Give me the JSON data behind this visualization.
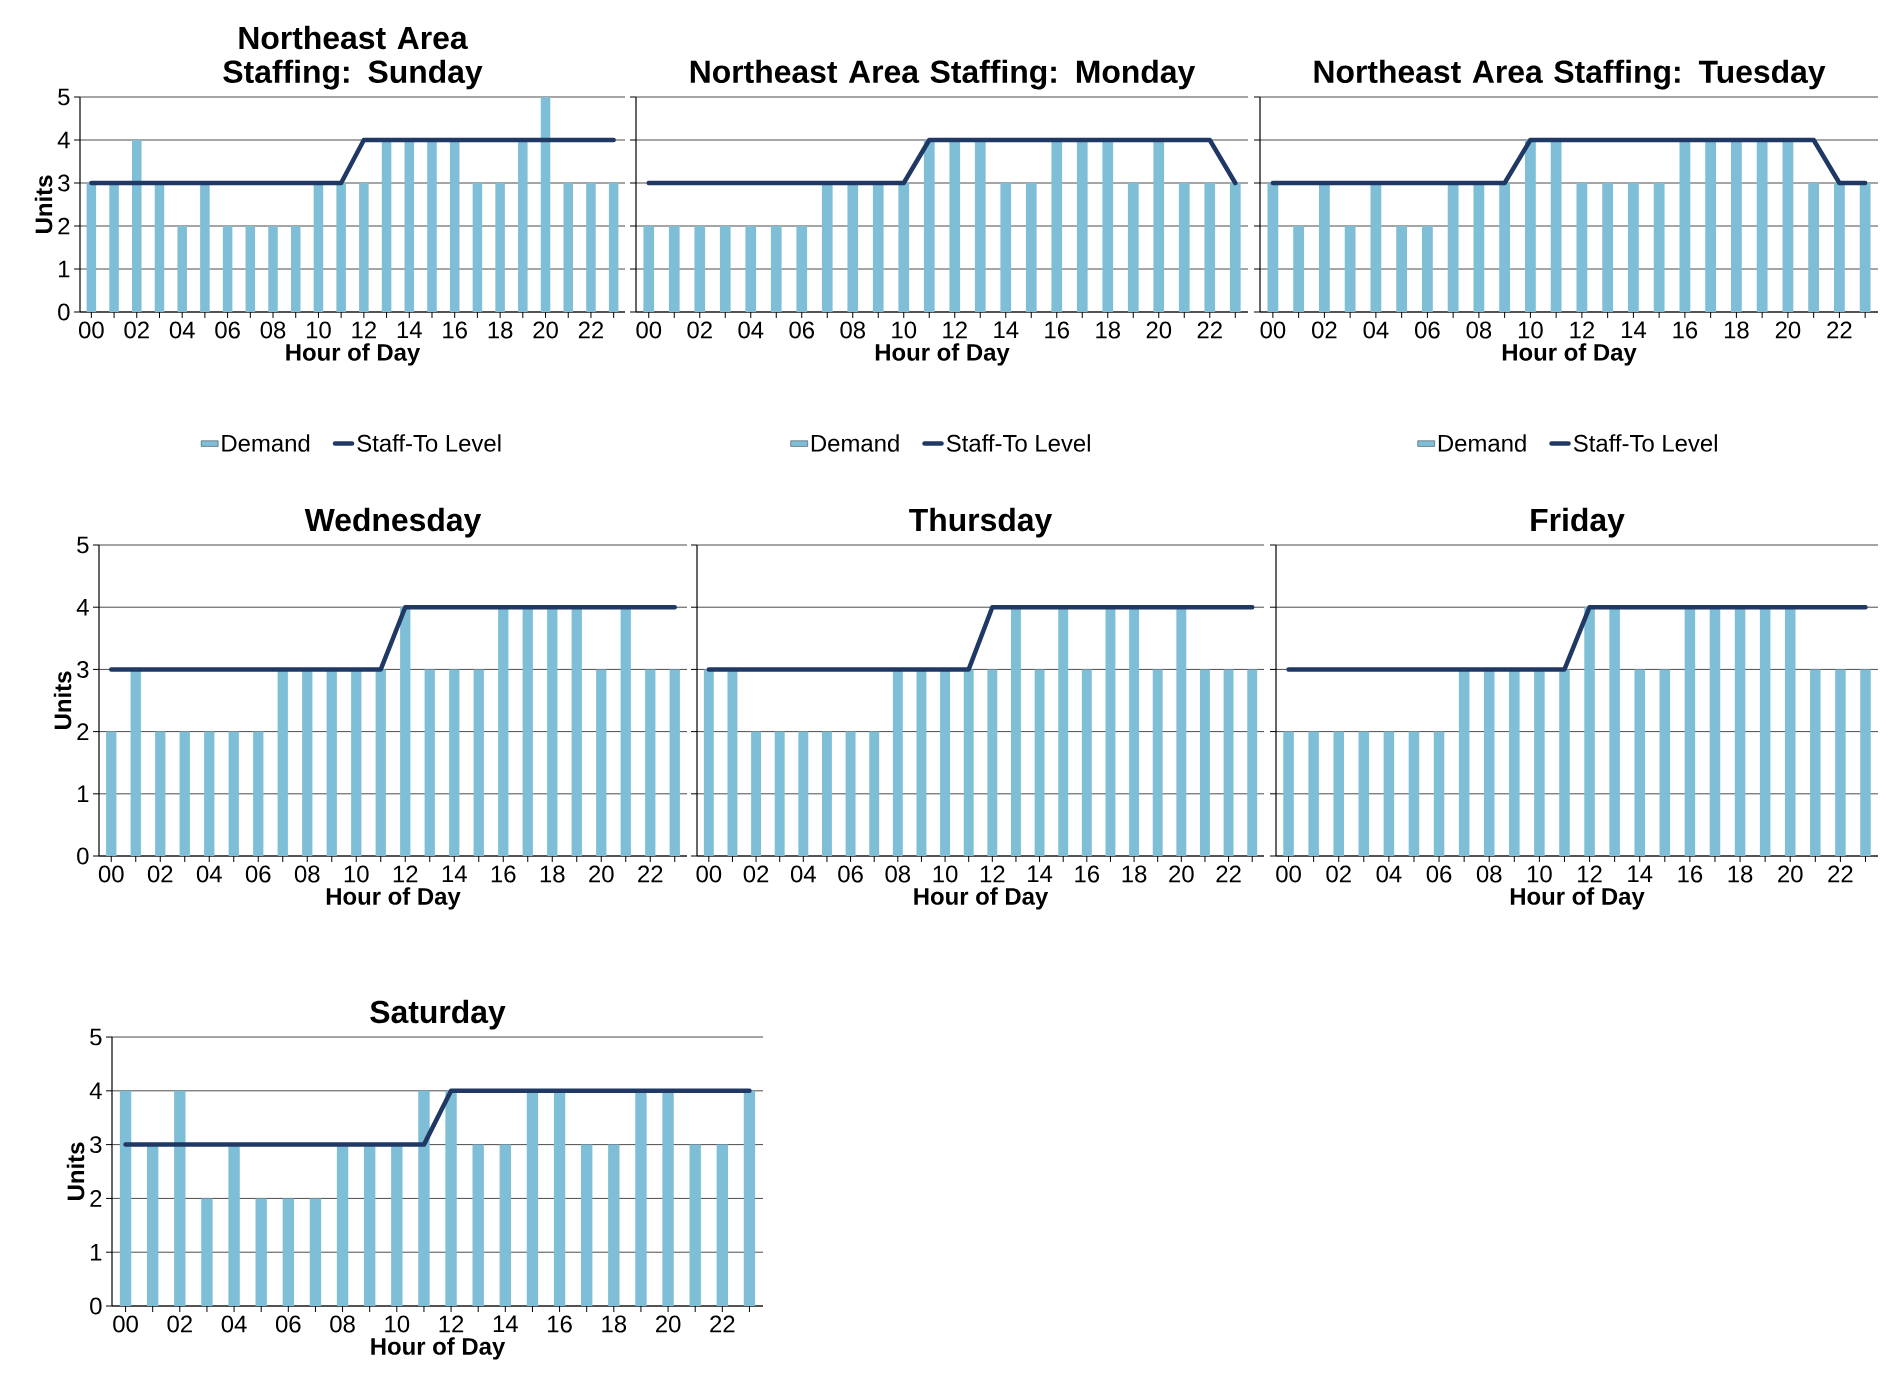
{
  "chart_data": [
    {
      "type": "bar",
      "title": "Northeast Area Staffing: Sunday",
      "xlabel": "Hour of Day",
      "ylabel": "Units",
      "categories": [
        "00",
        null,
        "02",
        null,
        "04",
        null,
        "06",
        null,
        "08",
        null,
        "10",
        null,
        "12",
        null,
        "14",
        null,
        "16",
        null,
        "18",
        null,
        "20",
        null,
        "22",
        null
      ],
      "ylim": [
        0,
        5
      ],
      "yticks": [
        0,
        1,
        2,
        3,
        4,
        5
      ],
      "grid": "y",
      "legend": "bottom",
      "series": [
        {
          "name": "Demand",
          "color": "#7ebfd7",
          "values": [
            3,
            3,
            4,
            3,
            2,
            3,
            2,
            2,
            2,
            2,
            3,
            3,
            3,
            4,
            4,
            4,
            4,
            3,
            3,
            4,
            5,
            3,
            3,
            3
          ]
        },
        {
          "name": "Staff-To Level",
          "type": "line",
          "color": "#1f3864",
          "values": [
            3,
            3,
            3,
            3,
            3,
            3,
            3,
            3,
            3,
            3,
            3,
            3,
            4,
            4,
            4,
            4,
            4,
            4,
            4,
            4,
            4,
            4,
            4,
            4
          ]
        }
      ]
    },
    {
      "type": "bar",
      "title": "Northeast Area Staffing: Monday",
      "xlabel": "Hour of Day",
      "categories": [
        "00",
        null,
        "02",
        null,
        "04",
        null,
        "06",
        null,
        "08",
        null,
        "10",
        null,
        "12",
        null,
        "14",
        null,
        "16",
        null,
        "18",
        null,
        "20",
        null,
        "22",
        null
      ],
      "ylim": [
        0,
        5
      ],
      "yticks": [
        0,
        1,
        2,
        3,
        4,
        5
      ],
      "grid": "y",
      "legend": "bottom",
      "tick_labels": "x",
      "series": [
        {
          "name": "Demand",
          "color": "#7ebfd7",
          "values": [
            2,
            2,
            2,
            2,
            2,
            2,
            2,
            3,
            3,
            3,
            3,
            4,
            4,
            4,
            3,
            3,
            4,
            4,
            4,
            3,
            4,
            3,
            3,
            3
          ]
        },
        {
          "name": "Staff-To Level",
          "type": "line",
          "color": "#1f3864",
          "values": [
            3,
            3,
            3,
            3,
            3,
            3,
            3,
            3,
            3,
            3,
            3,
            4,
            4,
            4,
            4,
            4,
            4,
            4,
            4,
            4,
            4,
            4,
            4,
            3
          ]
        }
      ]
    },
    {
      "type": "bar",
      "title": "Northeast Area Staffing: Tuesday",
      "xlabel": "Hour of Day",
      "categories": [
        "00",
        null,
        "02",
        null,
        "04",
        null,
        "06",
        null,
        "08",
        null,
        "10",
        null,
        "12",
        null,
        "14",
        null,
        "16",
        null,
        "18",
        null,
        "20",
        null,
        "22",
        null
      ],
      "ylim": [
        0,
        5
      ],
      "yticks": [
        0,
        1,
        2,
        3,
        4,
        5
      ],
      "grid": "y",
      "legend": "bottom",
      "tick_labels": "x",
      "series": [
        {
          "name": "Demand",
          "color": "#7ebfd7",
          "values": [
            3,
            2,
            3,
            2,
            3,
            2,
            2,
            3,
            3,
            3,
            4,
            4,
            3,
            3,
            3,
            3,
            4,
            4,
            4,
            4,
            4,
            3,
            3,
            3
          ]
        },
        {
          "name": "Staff-To Level",
          "type": "line",
          "color": "#1f3864",
          "values": [
            3,
            3,
            3,
            3,
            3,
            3,
            3,
            3,
            3,
            3,
            4,
            4,
            4,
            4,
            4,
            4,
            4,
            4,
            4,
            4,
            4,
            4,
            3,
            3
          ]
        }
      ]
    },
    {
      "type": "bar",
      "title": "Wednesday",
      "xlabel": "Hour of Day",
      "ylabel": "Units",
      "categories": [
        "00",
        null,
        "02",
        null,
        "04",
        null,
        "06",
        null,
        "08",
        null,
        "10",
        null,
        "12",
        null,
        "14",
        null,
        "16",
        null,
        "18",
        null,
        "20",
        null,
        "22",
        null
      ],
      "ylim": [
        0,
        5
      ],
      "yticks": [
        0,
        1,
        2,
        3,
        4,
        5
      ],
      "grid": "y",
      "series": [
        {
          "color": "#7ebfd7",
          "values": [
            2,
            3,
            2,
            2,
            2,
            2,
            2,
            3,
            3,
            3,
            3,
            3,
            4,
            3,
            3,
            3,
            4,
            4,
            4,
            4,
            3,
            4,
            3,
            3
          ]
        },
        {
          "type": "line",
          "color": "#1f3864",
          "values": [
            3,
            3,
            3,
            3,
            3,
            3,
            3,
            3,
            3,
            3,
            3,
            3,
            4,
            4,
            4,
            4,
            4,
            4,
            4,
            4,
            4,
            4,
            4,
            4
          ]
        }
      ]
    },
    {
      "type": "bar",
      "title": "Thursday",
      "xlabel": "Hour of Day",
      "categories": [
        "00",
        null,
        "02",
        null,
        "04",
        null,
        "06",
        null,
        "08",
        null,
        "10",
        null,
        "12",
        null,
        "14",
        null,
        "16",
        null,
        "18",
        null,
        "20",
        null,
        "22",
        null
      ],
      "ylim": [
        0,
        5
      ],
      "yticks": [
        0,
        1,
        2,
        3,
        4,
        5
      ],
      "grid": "y",
      "tick_labels": "x",
      "series": [
        {
          "color": "#7ebfd7",
          "values": [
            3,
            3,
            2,
            2,
            2,
            2,
            2,
            2,
            3,
            3,
            3,
            3,
            3,
            4,
            3,
            4,
            3,
            4,
            4,
            3,
            4,
            3,
            3,
            3
          ]
        },
        {
          "type": "line",
          "color": "#1f3864",
          "values": [
            3,
            3,
            3,
            3,
            3,
            3,
            3,
            3,
            3,
            3,
            3,
            3,
            4,
            4,
            4,
            4,
            4,
            4,
            4,
            4,
            4,
            4,
            4,
            4
          ]
        }
      ]
    },
    {
      "type": "bar",
      "title": "Friday",
      "xlabel": "Hour of Day",
      "categories": [
        "00",
        null,
        "02",
        null,
        "04",
        null,
        "06",
        null,
        "08",
        null,
        "10",
        null,
        "12",
        null,
        "14",
        null,
        "16",
        null,
        "18",
        null,
        "20",
        null,
        "22",
        null
      ],
      "ylim": [
        0,
        5
      ],
      "yticks": [
        0,
        1,
        2,
        3,
        4,
        5
      ],
      "grid": "y",
      "tick_labels": "x",
      "series": [
        {
          "color": "#7ebfd7",
          "values": [
            2,
            2,
            2,
            2,
            2,
            2,
            2,
            3,
            3,
            3,
            3,
            3,
            4,
            4,
            3,
            3,
            4,
            4,
            4,
            4,
            4,
            3,
            3,
            3
          ]
        },
        {
          "type": "line",
          "color": "#1f3864",
          "values": [
            3,
            3,
            3,
            3,
            3,
            3,
            3,
            3,
            3,
            3,
            3,
            3,
            4,
            4,
            4,
            4,
            4,
            4,
            4,
            4,
            4,
            4,
            4,
            4
          ]
        }
      ]
    },
    {
      "type": "bar",
      "title": "Saturday",
      "xlabel": "Hour of Day",
      "ylabel": "Units",
      "categories": [
        "00",
        null,
        "02",
        null,
        "04",
        null,
        "06",
        null,
        "08",
        null,
        "10",
        null,
        "12",
        null,
        "14",
        null,
        "16",
        null,
        "18",
        null,
        "20",
        null,
        "22",
        null
      ],
      "ylim": [
        0,
        5
      ],
      "yticks": [
        0,
        1,
        2,
        3,
        4,
        5
      ],
      "grid": "y",
      "series": [
        {
          "color": "#7ebfd7",
          "values": [
            4,
            3,
            4,
            2,
            3,
            2,
            2,
            2,
            3,
            3,
            3,
            4,
            4,
            3,
            3,
            4,
            4,
            3,
            3,
            4,
            4,
            3,
            3,
            4
          ]
        },
        {
          "type": "line",
          "color": "#1f3864",
          "values": [
            3,
            3,
            3,
            3,
            3,
            3,
            3,
            3,
            3,
            3,
            3,
            3,
            4,
            4,
            4,
            4,
            4,
            4,
            4,
            4,
            4,
            4,
            4,
            4
          ]
        }
      ]
    }
  ]
}
